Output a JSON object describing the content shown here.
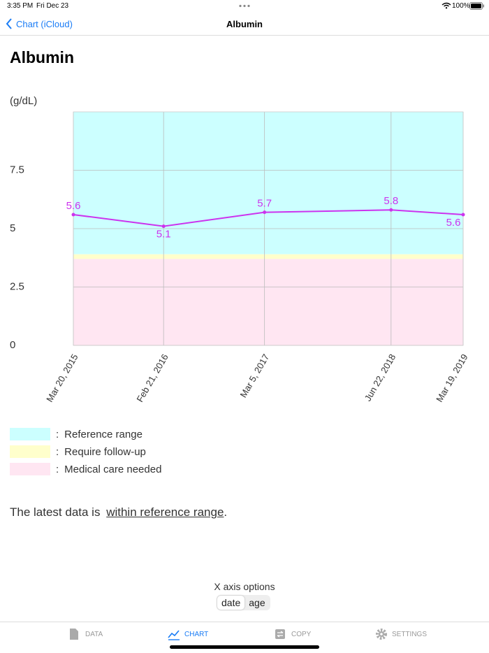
{
  "status_bar": {
    "time": "3:35 PM",
    "date": "Fri Dec 23",
    "battery": "100%"
  },
  "nav": {
    "back": "Chart (iCloud)",
    "title": "Albumin"
  },
  "chart_data": {
    "type": "line",
    "title": "Albumin",
    "y_label": "(g/dL)",
    "x": [
      "Mar 20, 2015",
      "Feb 21, 2016",
      "Mar 5, 2017",
      "Jun 22, 2018",
      "Mar 19, 2019"
    ],
    "values": [
      5.6,
      5.1,
      5.7,
      5.8,
      5.6
    ],
    "color": "#cc33ee",
    "ylim": [
      0,
      10
    ],
    "yticks": [
      0,
      2.5,
      5,
      7.5
    ],
    "grid": true,
    "bands": [
      {
        "name": "Reference range",
        "color": "#ccffff",
        "range": [
          3.9,
          10
        ]
      },
      {
        "name": "Require follow-up",
        "color": "#ffffcc",
        "range": [
          3.7,
          3.9
        ]
      },
      {
        "name": "Medical care needed",
        "color": "#ffe6f2",
        "range": [
          0,
          3.7
        ]
      }
    ],
    "legend_separator": ":"
  },
  "message": {
    "prefix": "The latest data is",
    "link": "within reference range",
    "suffix": "."
  },
  "x_axis_options": {
    "label": "X axis options",
    "options": [
      "date",
      "age"
    ],
    "selected": 0
  },
  "tabs": {
    "items": [
      "DATA",
      "CHART",
      "COPY",
      "SETTINGS"
    ],
    "selected": 1
  }
}
